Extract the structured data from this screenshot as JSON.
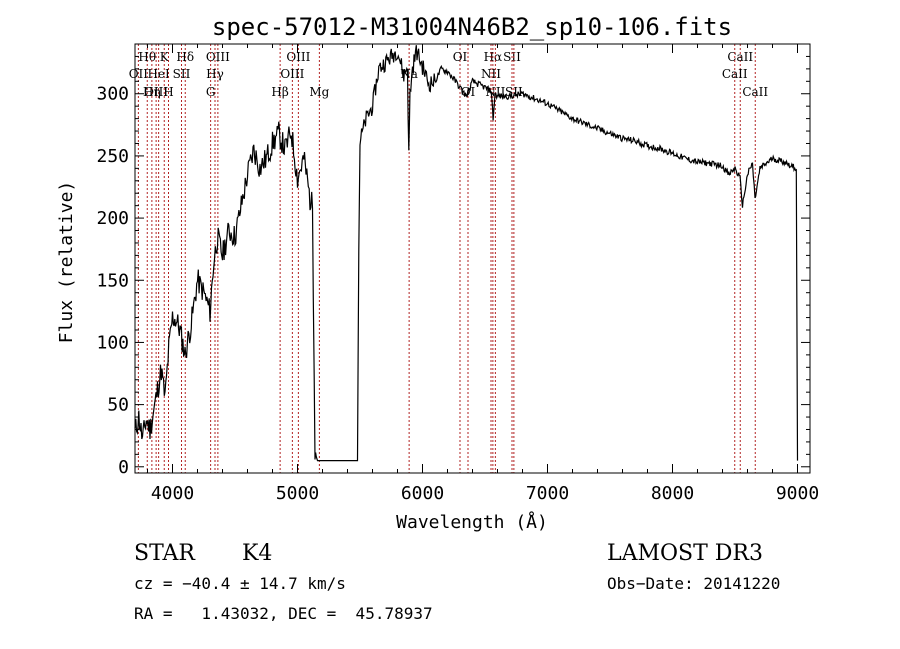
{
  "chart_data": {
    "type": "line",
    "title": "spec-57012-M31004N46B2_sp10-106.fits",
    "xlabel": "Wavelength (Å)",
    "ylabel": "Flux (relative)",
    "xlim": [
      3700,
      9100
    ],
    "ylim": [
      -5,
      340
    ],
    "xticks": [
      4000,
      5000,
      6000,
      7000,
      8000,
      9000
    ],
    "yticks": [
      0,
      50,
      100,
      150,
      200,
      250,
      300
    ],
    "grid": false,
    "series": [
      {
        "name": "flux",
        "x": [
          3700,
          3730,
          3760,
          3790,
          3820,
          3850,
          3880,
          3910,
          3940,
          3970,
          4000,
          4030,
          4060,
          4100,
          4150,
          4200,
          4250,
          4300,
          4330,
          4360,
          4400,
          4450,
          4500,
          4550,
          4600,
          4650,
          4700,
          4750,
          4800,
          4850,
          4900,
          4950,
          5000,
          5050,
          5080,
          5100,
          5120,
          5140,
          5150,
          5160,
          5480,
          5490,
          5500,
          5550,
          5600,
          5650,
          5700,
          5750,
          5800,
          5850,
          5880,
          5890,
          5900,
          5920,
          5950,
          6000,
          6050,
          6100,
          6150,
          6200,
          6250,
          6300,
          6350,
          6400,
          6500,
          6550,
          6565,
          6580,
          6600,
          6700,
          6800,
          6900,
          7000,
          7100,
          7200,
          7300,
          7400,
          7500,
          7600,
          7700,
          7800,
          7900,
          8000,
          8100,
          8200,
          8300,
          8400,
          8450,
          8500,
          8540,
          8560,
          8600,
          8640,
          8660,
          8700,
          8800,
          8900,
          8990,
          9000
        ],
        "y": [
          28,
          40,
          22,
          38,
          30,
          45,
          62,
          78,
          55,
          95,
          120,
          118,
          110,
          90,
          115,
          150,
          140,
          125,
          165,
          185,
          170,
          190,
          185,
          210,
          235,
          255,
          240,
          248,
          260,
          268,
          255,
          270,
          232,
          248,
          230,
          215,
          210,
          15,
          8,
          5,
          5,
          175,
          262,
          280,
          290,
          320,
          325,
          330,
          335,
          315,
          322,
          250,
          300,
          320,
          335,
          322,
          308,
          310,
          320,
          318,
          312,
          305,
          298,
          310,
          305,
          302,
          280,
          300,
          298,
          298,
          300,
          296,
          292,
          286,
          280,
          276,
          272,
          268,
          264,
          262,
          258,
          256,
          252,
          248,
          245,
          244,
          242,
          235,
          240,
          232,
          210,
          235,
          244,
          215,
          240,
          248,
          245,
          240,
          5
        ]
      }
    ],
    "line_labels": [
      {
        "name": "Hθ",
        "wave": 3798,
        "row": 1
      },
      {
        "name": "OII",
        "wave": 3727,
        "row": 2
      },
      {
        "name": "OIII",
        "wave": 3869,
        "row": 3
      },
      {
        "name": "K",
        "wave": 3934,
        "row": 1
      },
      {
        "name": "HeI",
        "wave": 3889,
        "row": 2
      },
      {
        "name": "Hη",
        "wave": 3835,
        "row": 3
      },
      {
        "name": "H",
        "wave": 3968,
        "row": 3
      },
      {
        "name": "Hδ",
        "wave": 4102,
        "row": 1
      },
      {
        "name": "SII",
        "wave": 4072,
        "row": 2
      },
      {
        "name": "OIII",
        "wave": 4363,
        "row": 1
      },
      {
        "name": "Hγ",
        "wave": 4340,
        "row": 2
      },
      {
        "name": "G",
        "wave": 4305,
        "row": 3
      },
      {
        "name": "Hβ",
        "wave": 4861,
        "row": 3
      },
      {
        "name": "OIII",
        "wave": 5007,
        "row": 1
      },
      {
        "name": "OIII",
        "wave": 4959,
        "row": 2
      },
      {
        "name": "Mg",
        "wave": 5175,
        "row": 3
      },
      {
        "name": "Na",
        "wave": 5893,
        "row": 2
      },
      {
        "name": "OI",
        "wave": 6300,
        "row": 1
      },
      {
        "name": "OI",
        "wave": 6364,
        "row": 3
      },
      {
        "name": "Hα",
        "wave": 6563,
        "row": 1
      },
      {
        "name": "SII",
        "wave": 6716,
        "row": 1
      },
      {
        "name": "NII",
        "wave": 6548,
        "row": 2
      },
      {
        "name": "NII",
        "wave": 6583,
        "row": 3
      },
      {
        "name": "SII",
        "wave": 6731,
        "row": 3
      },
      {
        "name": "CaII",
        "wave": 8542,
        "row": 1
      },
      {
        "name": "CaII",
        "wave": 8498,
        "row": 2
      },
      {
        "name": "CaII",
        "wave": 8662,
        "row": 3
      }
    ],
    "line_color": "#b22222"
  },
  "info": {
    "object_class": "STAR",
    "subclass": "K4",
    "survey": "LAMOST DR3",
    "redshift": "cz = −40.4 ± 14.7 km/s",
    "obs_date": "Obs−Date: 20141220",
    "coords": "RA =   1.43032, DEC =  45.78937"
  }
}
